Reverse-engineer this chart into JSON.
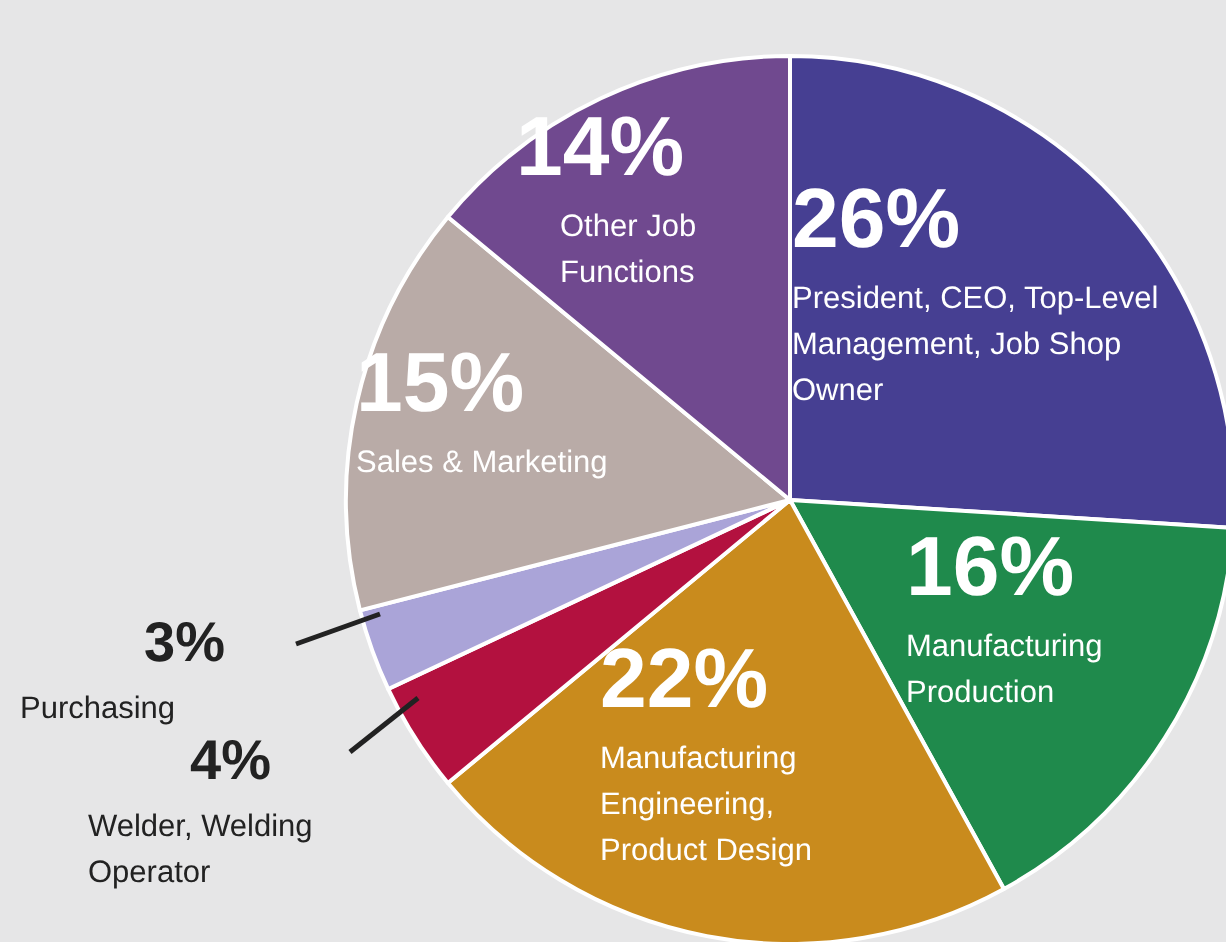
{
  "chart_data": {
    "type": "pie",
    "categories": [
      "President, CEO, Top-Level Management, Job Shop Owner",
      "Manufacturing Production",
      "Manufacturing Engineering, Product Design",
      "Welder, Welding Operator",
      "Purchasing",
      "Sales & Marketing",
      "Other Job Functions"
    ],
    "values": [
      26,
      16,
      22,
      4,
      3,
      15,
      14
    ],
    "value_labels": [
      "26%",
      "16%",
      "22%",
      "4%",
      "3%",
      "15%",
      "14%"
    ],
    "colors": [
      "#463f92",
      "#1f8a4c",
      "#c98b1d",
      "#b3113f",
      "#aaa4d8",
      "#b9aba7",
      "#70498f"
    ],
    "legend": false
  }
}
